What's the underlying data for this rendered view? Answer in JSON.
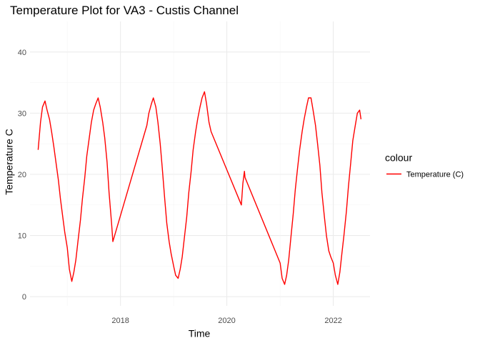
{
  "chart_data": {
    "type": "line",
    "title": "Temperature Plot for VA3 - Custis Channel",
    "xlabel": "Time",
    "ylabel": "Temperature C",
    "x_ticks": [
      "2018",
      "2020",
      "2022"
    ],
    "y_ticks": [
      "0",
      "10",
      "20",
      "30",
      "40"
    ],
    "xlim": [
      "2016-04-20",
      "2022-09-10"
    ],
    "ylim": [
      -1.5,
      45
    ],
    "grid": true,
    "legend": {
      "title": "colour",
      "position": "right"
    },
    "series": [
      {
        "name": "Temperature (C)",
        "color": "#ff0000",
        "x": [
          "2016-06-15",
          "2016-07-01",
          "2016-07-15",
          "2016-08-01",
          "2016-08-15",
          "2016-09-01",
          "2016-09-15",
          "2016-10-01",
          "2016-10-15",
          "2016-11-01",
          "2016-11-15",
          "2016-12-01",
          "2016-12-15",
          "2017-01-01",
          "2017-01-15",
          "2017-02-01",
          "2017-02-15",
          "2017-03-01",
          "2017-03-15",
          "2017-04-01",
          "2017-04-15",
          "2017-05-01",
          "2017-05-15",
          "2017-06-01",
          "2017-06-15",
          "2017-07-01",
          "2017-07-15",
          "2017-08-01",
          "2017-08-15",
          "2017-09-01",
          "2017-09-15",
          "2017-10-01",
          "2017-10-15",
          "2017-11-01",
          "2017-11-10",
          "2018-07-01",
          "2018-07-15",
          "2018-08-01",
          "2018-08-15",
          "2018-09-01",
          "2018-09-15",
          "2018-10-01",
          "2018-10-15",
          "2018-11-01",
          "2018-11-15",
          "2018-12-01",
          "2018-12-15",
          "2019-01-01",
          "2019-01-15",
          "2019-02-01",
          "2019-02-15",
          "2019-03-01",
          "2019-03-15",
          "2019-04-01",
          "2019-04-15",
          "2019-05-01",
          "2019-05-15",
          "2019-06-01",
          "2019-06-15",
          "2019-07-01",
          "2019-07-15",
          "2019-08-01",
          "2019-08-15",
          "2019-09-01",
          "2019-09-15",
          "2020-04-10",
          "2020-04-20",
          "2020-05-01",
          "2020-05-05",
          "2021-01-01",
          "2021-01-15",
          "2021-02-01",
          "2021-02-15",
          "2021-03-01",
          "2021-03-15",
          "2021-04-01",
          "2021-04-15",
          "2021-05-01",
          "2021-05-15",
          "2021-06-01",
          "2021-06-15",
          "2021-07-01",
          "2021-07-15",
          "2021-08-01",
          "2021-08-15",
          "2021-09-01",
          "2021-09-15",
          "2021-10-01",
          "2021-10-15",
          "2021-11-01",
          "2021-11-15",
          "2021-12-01",
          "2021-12-15",
          "2022-01-01",
          "2022-01-15",
          "2022-02-01",
          "2022-02-15",
          "2022-03-01",
          "2022-03-15",
          "2022-04-01",
          "2022-04-15",
          "2022-05-01",
          "2022-05-15",
          "2022-06-01",
          "2022-06-15",
          "2022-07-01",
          "2022-07-10"
        ],
        "y": [
          24.0,
          28.5,
          31.0,
          32.0,
          30.5,
          29.0,
          27.0,
          24.5,
          22.0,
          19.0,
          16.0,
          13.0,
          10.5,
          8.0,
          4.5,
          2.5,
          4.0,
          6.0,
          9.0,
          12.5,
          16.0,
          19.5,
          23.0,
          26.0,
          28.5,
          30.5,
          31.5,
          32.5,
          31.0,
          28.5,
          26.0,
          22.0,
          17.0,
          12.0,
          9.0,
          28.0,
          30.0,
          31.5,
          32.5,
          31.0,
          28.5,
          25.0,
          21.0,
          16.0,
          12.0,
          9.0,
          7.0,
          5.0,
          3.5,
          3.0,
          4.5,
          6.5,
          9.5,
          13.0,
          17.0,
          20.5,
          24.0,
          27.0,
          29.0,
          31.0,
          32.5,
          33.5,
          31.5,
          28.5,
          27.0,
          15.0,
          18.5,
          20.5,
          19.5,
          5.5,
          3.0,
          2.0,
          3.5,
          6.0,
          9.5,
          13.5,
          17.5,
          21.0,
          24.0,
          27.0,
          29.0,
          31.0,
          32.5,
          32.5,
          30.5,
          28.0,
          25.0,
          21.5,
          17.0,
          13.0,
          10.0,
          7.5,
          6.5,
          5.5,
          3.5,
          2.0,
          4.0,
          7.0,
          10.0,
          14.0,
          18.0,
          22.0,
          25.5,
          28.0,
          30.0,
          30.5,
          29.0
        ]
      }
    ]
  }
}
